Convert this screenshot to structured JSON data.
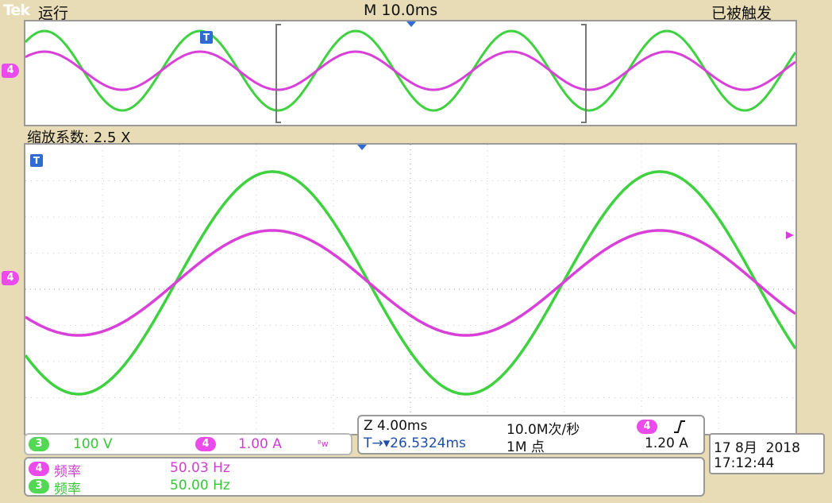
{
  "header": {
    "brand": "Tek",
    "run_state": "运行",
    "timebase": "M 10.0ms",
    "trigger_state": "已被触发"
  },
  "zoom": {
    "label": "缩放系数: 2.5 X"
  },
  "markers": {
    "ch4_label": "4",
    "trigger_label": "T"
  },
  "channels": {
    "ch3": {
      "badge": "3",
      "scale": "100 V",
      "color": "#3fd13f"
    },
    "ch4": {
      "badge": "4",
      "scale": "1.00 A",
      "bw_icon": "bandwidth-limit-icon",
      "color": "#d93fd9"
    }
  },
  "horizontal": {
    "zoom_scale": "Z 4.00ms",
    "sample_rate": "10.0M次/秒",
    "trigger_source_badge": "4",
    "trigger_edge_icon": "rising-edge-icon",
    "trigger_position": "T→▾26.5324ms",
    "record_length": "1M 点",
    "trigger_level": "1.20 A"
  },
  "datetime": {
    "date": "17 8月  2018",
    "time": "17:12:44"
  },
  "measurements": [
    {
      "badge": "4",
      "name": "频率",
      "value": "50.03 Hz",
      "color": "#d93fd9"
    },
    {
      "badge": "3",
      "name": "频率",
      "value": "50.00 Hz",
      "color": "#3fd13f"
    }
  ]
}
